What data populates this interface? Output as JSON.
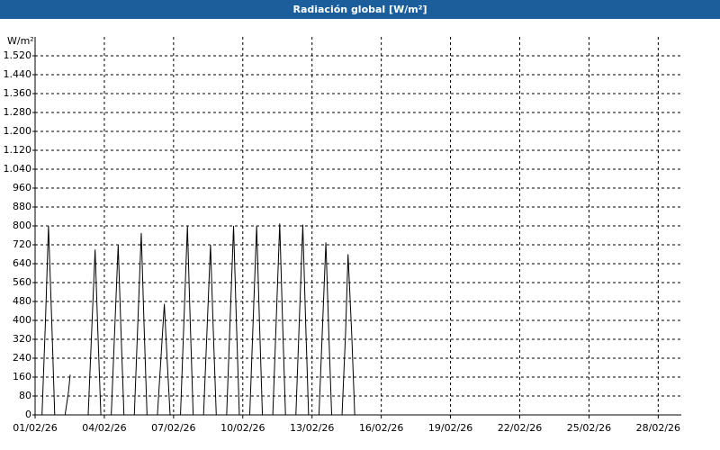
{
  "chart_data": {
    "type": "line",
    "title": "Radiación global [W/m²]",
    "y_label": "W/m²",
    "color": "#000000",
    "grid": true,
    "xlim": [
      0,
      28
    ],
    "ylim": [
      0,
      1600
    ],
    "xticks": [
      {
        "value": 0,
        "label": "01/02/26"
      },
      {
        "value": 3,
        "label": "04/02/26"
      },
      {
        "value": 6,
        "label": "07/02/26"
      },
      {
        "value": 9,
        "label": "10/02/26"
      },
      {
        "value": 12,
        "label": "13/02/26"
      },
      {
        "value": 15,
        "label": "16/02/26"
      },
      {
        "value": 18,
        "label": "19/02/26"
      },
      {
        "value": 21,
        "label": "22/02/26"
      },
      {
        "value": 24,
        "label": "25/02/26"
      },
      {
        "value": 27,
        "label": "28/02/26"
      }
    ],
    "yticks": [
      0,
      80,
      160,
      240,
      320,
      400,
      480,
      560,
      640,
      720,
      800,
      880,
      960,
      {
        "value": 1040,
        "label": "1.040"
      },
      {
        "value": 1120,
        "label": "1.120"
      },
      {
        "value": 1200,
        "label": "1.200"
      },
      {
        "value": 1280,
        "label": "1.280"
      },
      {
        "value": 1360,
        "label": "1.360"
      },
      {
        "value": 1440,
        "label": "1.440"
      },
      {
        "value": 1520,
        "label": "1.520"
      }
    ],
    "x": [
      0,
      0.3,
      0.45,
      0.58,
      0.72,
      0.85,
      1.3,
      1.45,
      1.52,
      1.7,
      1.92,
      2.3,
      2.45,
      2.6,
      2.72,
      2.85,
      3.3,
      3.45,
      3.6,
      3.72,
      3.85,
      4.3,
      4.45,
      4.6,
      4.72,
      4.85,
      5.3,
      5.45,
      5.6,
      5.72,
      5.85,
      6.3,
      6.45,
      6.6,
      6.72,
      6.85,
      7.3,
      7.45,
      7.6,
      7.72,
      7.85,
      8.3,
      8.45,
      8.6,
      8.72,
      8.85,
      9.3,
      9.45,
      9.6,
      9.72,
      9.85,
      10.3,
      10.45,
      10.6,
      10.72,
      10.85,
      11.3,
      11.45,
      11.6,
      11.72,
      11.85,
      12.3,
      12.45,
      12.6,
      12.72,
      12.85,
      13.3,
      13.45,
      13.56,
      13.72,
      13.85,
      14.1
    ],
    "values": [
      0,
      0,
      400,
      800,
      400,
      0,
      0,
      100,
      170,
      null,
      0,
      0,
      350,
      700,
      350,
      0,
      0,
      360,
      720,
      360,
      0,
      0,
      385,
      770,
      385,
      0,
      0,
      235,
      470,
      235,
      0,
      0,
      400,
      800,
      400,
      0,
      0,
      360,
      720,
      360,
      0,
      0,
      400,
      800,
      400,
      0,
      0,
      400,
      800,
      400,
      0,
      0,
      405,
      810,
      405,
      0,
      0,
      402,
      805,
      402,
      0,
      0,
      365,
      730,
      365,
      0,
      0,
      340,
      680,
      340,
      0,
      0
    ]
  }
}
